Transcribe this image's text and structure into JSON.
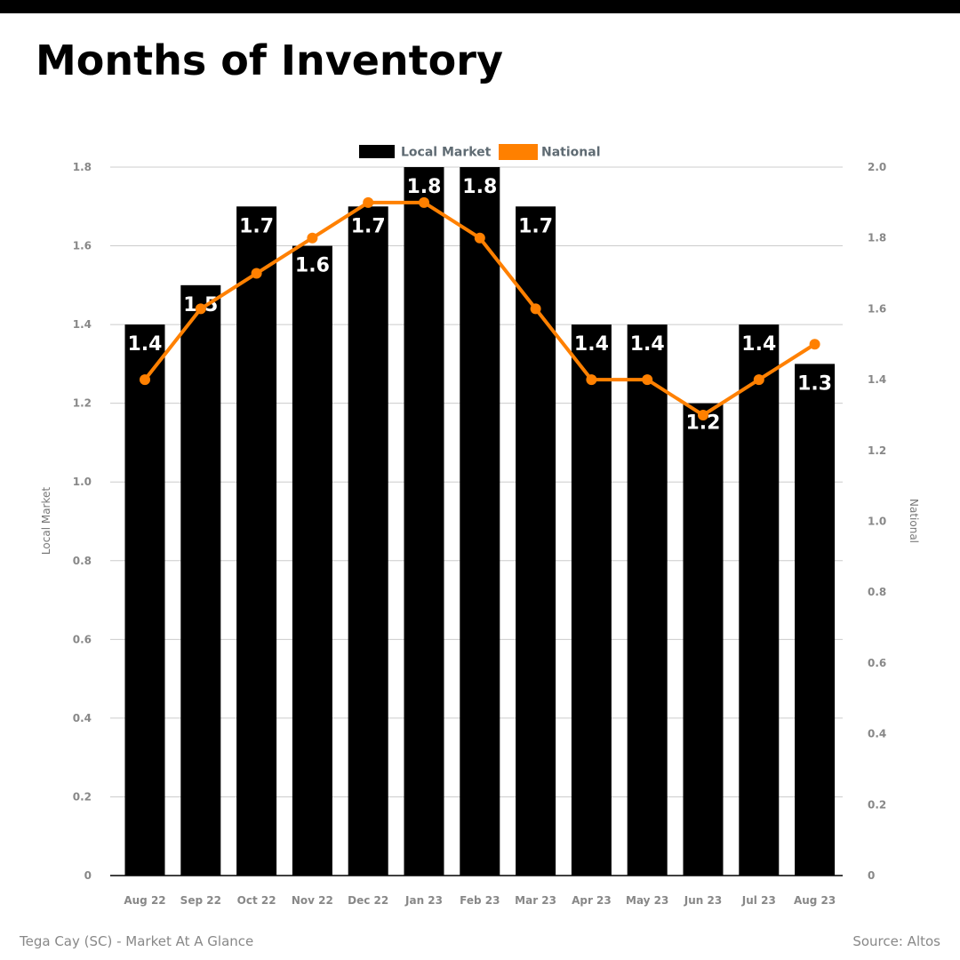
{
  "header": {
    "title": "Months of Inventory"
  },
  "footer": {
    "left_text": "Tega Cay (SC) - Market At A Glance",
    "right_text": "Source: Altos"
  },
  "colors": {
    "local": "#000000",
    "national": "#ff8000",
    "grid": "#cccccc"
  },
  "chart_data": {
    "type": "bar",
    "title": "Months of Inventory",
    "categories": [
      "Aug 22",
      "Sep 22",
      "Oct 22",
      "Nov 22",
      "Dec 22",
      "Jan 23",
      "Feb 23",
      "Mar 23",
      "Apr 23",
      "May 23",
      "Jun 23",
      "Jul 23",
      "Aug 23"
    ],
    "series": [
      {
        "name": "Local Market",
        "type": "bar",
        "axis": "left",
        "values": [
          1.4,
          1.5,
          1.7,
          1.6,
          1.7,
          1.8,
          1.8,
          1.7,
          1.4,
          1.4,
          1.2,
          1.4,
          1.3
        ],
        "labels": [
          "1.4",
          "1.5",
          "1.7",
          "1.6",
          "1.7",
          "1.8",
          "1.8",
          "1.7",
          "1.4",
          "1.4",
          "1.2",
          "1.4",
          "1.3"
        ]
      },
      {
        "name": "National",
        "type": "line",
        "axis": "right",
        "values": [
          1.4,
          1.6,
          1.7,
          1.8,
          1.9,
          1.9,
          1.8,
          1.6,
          1.4,
          1.4,
          1.3,
          1.4,
          1.5
        ]
      }
    ],
    "y_left": {
      "label": "Local Market",
      "range": [
        0,
        1.8
      ],
      "ticks": [
        "0",
        "0.2",
        "0.4",
        "0.6",
        "0.8",
        "1.0",
        "1.2",
        "1.4",
        "1.6",
        "1.8"
      ]
    },
    "y_right": {
      "label": "National",
      "range": [
        0,
        2.0
      ],
      "ticks": [
        "0",
        "0.2",
        "0.4",
        "0.6",
        "0.8",
        "1.0",
        "1.2",
        "1.4",
        "1.6",
        "1.8",
        "2.0"
      ]
    },
    "grid": true,
    "legend_position": "top-center"
  }
}
